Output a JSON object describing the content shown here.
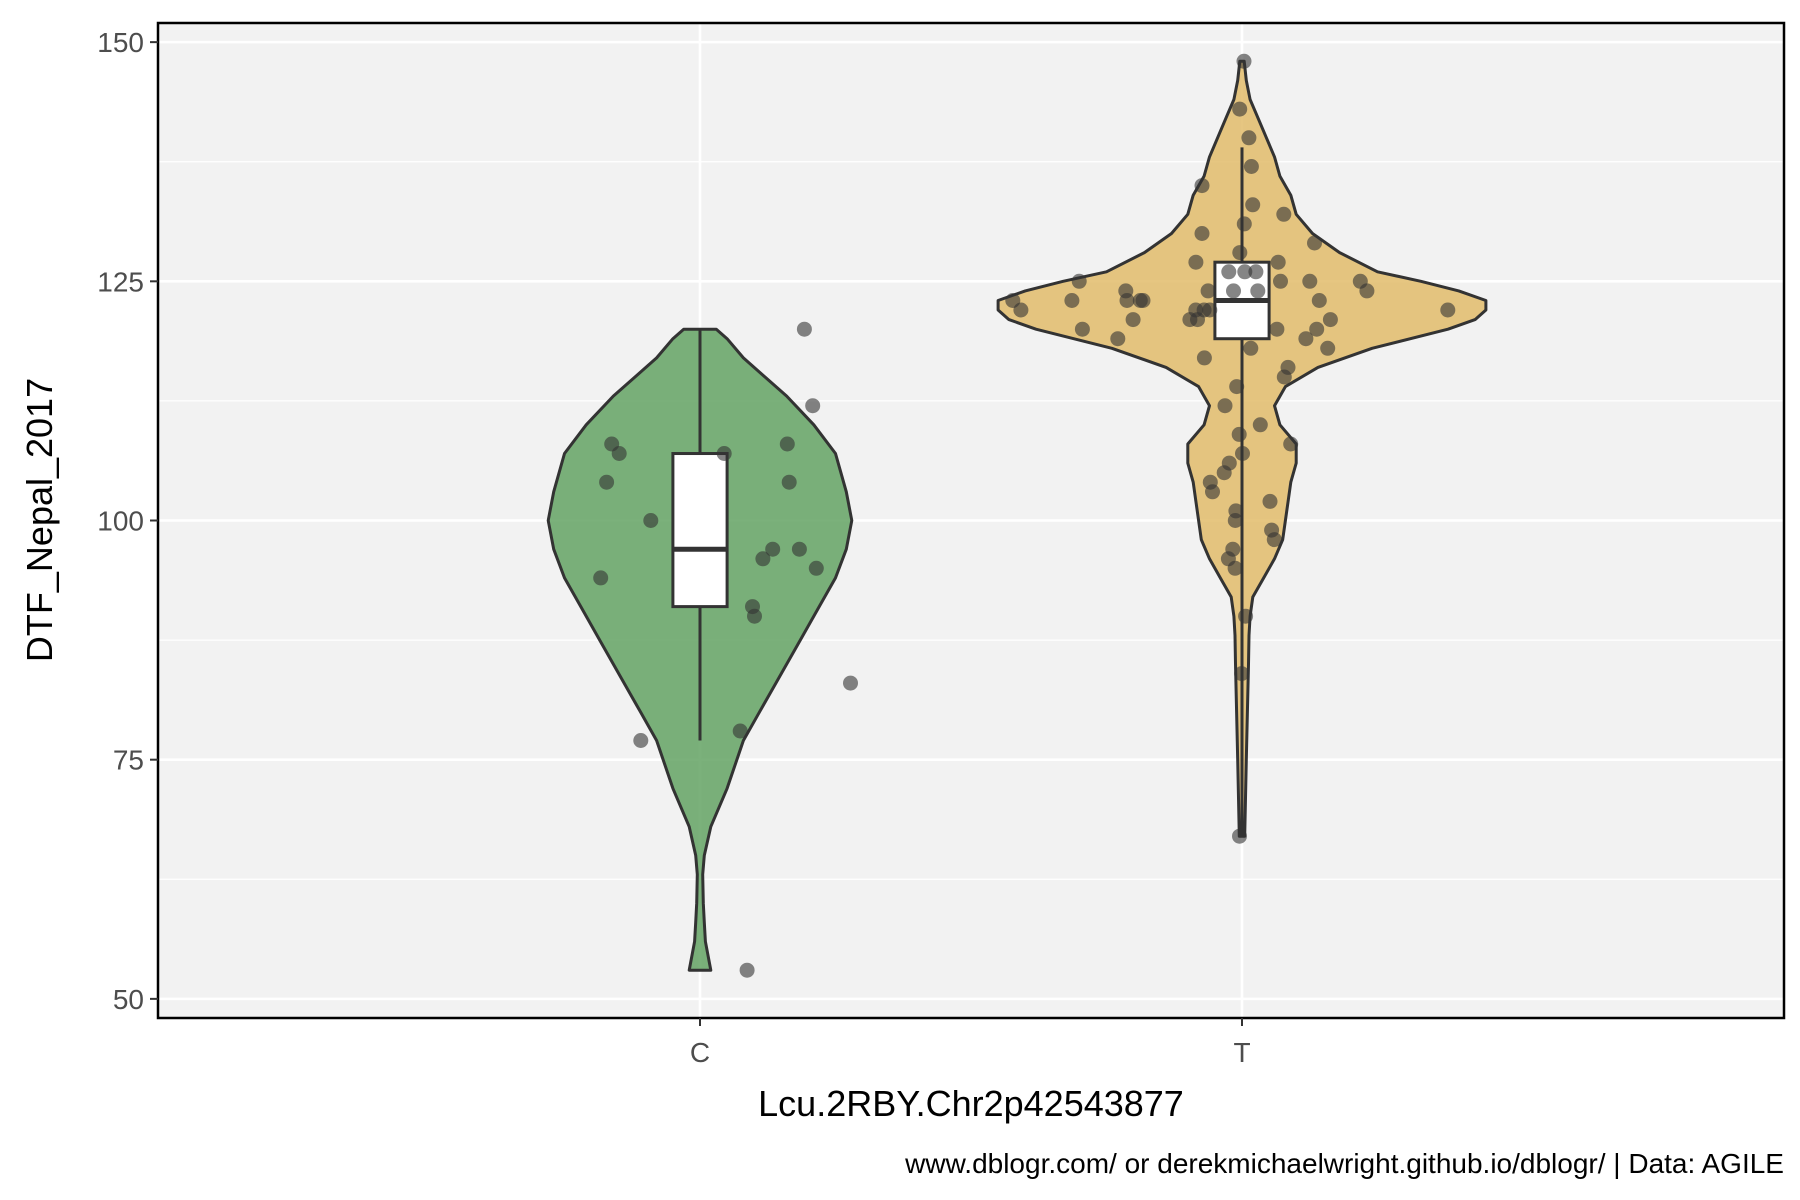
{
  "chart_data": {
    "type": "violin",
    "title": "",
    "xlabel": "Lcu.2RBY.Chr2p42543877",
    "ylabel": "DTF_Nepal_2017",
    "caption": "www.dblogr.com/ or derekmichaelwright.github.io/dblogr/ | Data: AGILE",
    "ylim": [
      48,
      152
    ],
    "yticks": [
      50,
      75,
      100,
      125,
      150
    ],
    "ytick_labels": [
      "50",
      "75",
      "100",
      "125",
      "150"
    ],
    "grid": true,
    "legend": "none",
    "categories": [
      "C",
      "T"
    ],
    "groups": [
      {
        "name": "C",
        "color": "#5a9e5a",
        "violin": {
          "y": [
            53,
            56,
            58,
            60,
            63,
            65,
            68,
            72,
            77,
            80,
            83,
            87,
            91,
            94,
            97,
            100,
            103,
            107,
            110,
            113,
            115,
            117,
            119,
            120
          ],
          "half_width": [
            0.02,
            0.01,
            0.008,
            0.006,
            0.005,
            0.008,
            0.02,
            0.05,
            0.08,
            0.11,
            0.14,
            0.18,
            0.22,
            0.25,
            0.27,
            0.28,
            0.27,
            0.25,
            0.21,
            0.16,
            0.12,
            0.08,
            0.05,
            0.03
          ]
        },
        "box": {
          "lower_whisker": 77,
          "q1": 91,
          "median": 97,
          "q3": 107,
          "upper_whisker": 120
        },
        "points": [
          53,
          77,
          78,
          83,
          90,
          91,
          94,
          95,
          96,
          97,
          97,
          100,
          104,
          104,
          107,
          107,
          108,
          108,
          112,
          120
        ]
      },
      {
        "name": "T",
        "color": "#e0b862",
        "violin": {
          "y": [
            67,
            70,
            75,
            80,
            85,
            88,
            90,
            92,
            94,
            96,
            98,
            100,
            102,
            104,
            106,
            108,
            110,
            112,
            114,
            116,
            118,
            120,
            121,
            122,
            123,
            124,
            125,
            126,
            128,
            130,
            132,
            134,
            136,
            138,
            140,
            142,
            144,
            146,
            148
          ],
          "half_width": [
            0.005,
            0.006,
            0.008,
            0.01,
            0.012,
            0.013,
            0.015,
            0.02,
            0.04,
            0.06,
            0.075,
            0.08,
            0.085,
            0.09,
            0.1,
            0.1,
            0.07,
            0.06,
            0.08,
            0.14,
            0.24,
            0.38,
            0.43,
            0.45,
            0.45,
            0.4,
            0.33,
            0.25,
            0.18,
            0.13,
            0.1,
            0.09,
            0.07,
            0.06,
            0.045,
            0.03,
            0.015,
            0.008,
            0.004
          ]
        },
        "box": {
          "lower_whisker": 67,
          "q1": 119,
          "median": 123,
          "q3": 127,
          "upper_whisker": 139
        },
        "points": [
          67,
          84,
          90,
          95,
          96,
          97,
          98,
          99,
          100,
          101,
          102,
          103,
          104,
          105,
          106,
          107,
          108,
          109,
          110,
          112,
          114,
          115,
          116,
          117,
          118,
          118,
          119,
          119,
          120,
          120,
          120,
          121,
          121,
          121,
          121,
          122,
          122,
          122,
          122,
          122,
          123,
          123,
          123,
          123,
          123,
          123,
          124,
          124,
          124,
          124,
          124,
          125,
          125,
          125,
          125,
          126,
          126,
          126,
          127,
          127,
          128,
          129,
          130,
          131,
          132,
          133,
          135,
          137,
          140,
          143,
          148
        ]
      }
    ]
  }
}
